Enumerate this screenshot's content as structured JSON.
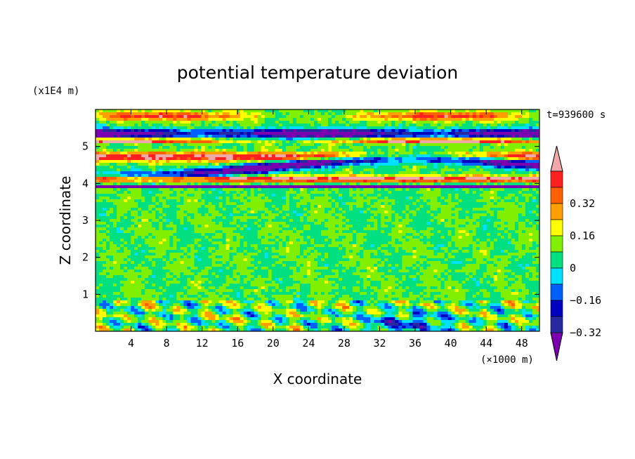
{
  "chart_data": {
    "type": "heatmap",
    "title": "potential temperature deviation",
    "xlabel": "X coordinate",
    "ylabel": "Z coordinate",
    "x_unit": "(×1000 m)",
    "y_unit": "(x1E4 m)",
    "time_label": "t=939600 s",
    "xlim": [
      0,
      50
    ],
    "ylim": [
      0,
      6
    ],
    "x_ticks": [
      4,
      8,
      12,
      16,
      20,
      24,
      28,
      32,
      36,
      40,
      44,
      48
    ],
    "y_ticks": [
      1,
      2,
      3,
      4,
      5
    ],
    "colorbar": {
      "levels": [
        -0.48,
        -0.4,
        -0.32,
        -0.24,
        -0.16,
        -0.08,
        0,
        0.08,
        0.16,
        0.24,
        0.32,
        0.4,
        0.48
      ],
      "labeled_levels": [
        "0.32",
        "0.16",
        "0",
        "−0.16",
        "−0.32"
      ],
      "colors": [
        "#7B00B0",
        "#2828A0",
        "#0000C0",
        "#0060FF",
        "#00E0FF",
        "#00E080",
        "#80F000",
        "#FFFF00",
        "#FFA000",
        "#FF6000",
        "#FF2020",
        "#F0A8A8"
      ]
    }
  }
}
